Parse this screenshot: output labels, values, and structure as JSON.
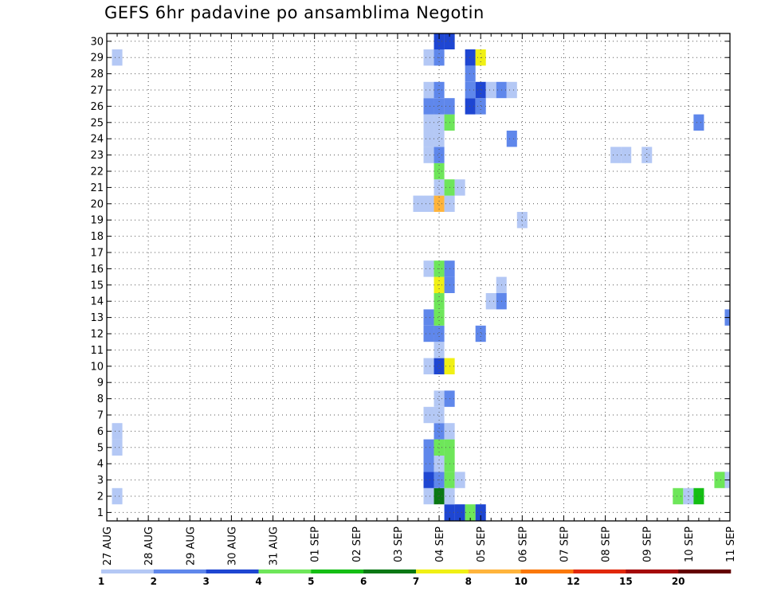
{
  "chart_data": {
    "type": "heatmap",
    "title": "GEFS 6hr padavine po ansamblima Negotin",
    "x_ticks": [
      "27 AUG",
      "28 AUG",
      "29 AUG",
      "30 AUG",
      "31 AUG",
      "01 SEP",
      "02 SEP",
      "03 SEP",
      "04 SEP",
      "05 SEP",
      "06 SEP",
      "07 SEP",
      "08 SEP",
      "09 SEP",
      "10 SEP",
      "11 SEP"
    ],
    "x_step_hours": 6,
    "x_ticks_per_day": 4,
    "y_ticks": [
      1,
      2,
      3,
      4,
      5,
      6,
      7,
      8,
      9,
      10,
      11,
      12,
      13,
      14,
      15,
      16,
      17,
      18,
      19,
      20,
      21,
      22,
      23,
      24,
      25,
      26,
      27,
      28,
      29,
      30
    ],
    "grid": true,
    "legend_position": "bottom",
    "legend_labels": [
      "1",
      "2",
      "3",
      "4",
      "5",
      "6",
      "7",
      "8",
      "10",
      "12",
      "15",
      "20"
    ],
    "legend_colors": [
      "#b4c8f5",
      "#5f87eb",
      "#1e46d2",
      "#6ee65a",
      "#14be14",
      "#0a7814",
      "#f0f014",
      "#ffb43c",
      "#fa780a",
      "#e1280a",
      "#a50a0a",
      "#640000"
    ],
    "series": [
      {
        "member": 1,
        "cells": [
          [
            8.25,
            3
          ],
          [
            8.5,
            3
          ],
          [
            8.75,
            4
          ],
          [
            9.0,
            3
          ],
          [
            20.25,
            3
          ],
          [
            20.5,
            3
          ],
          [
            20.75,
            2
          ]
        ]
      },
      {
        "member": 2,
        "cells": [
          [
            0.25,
            1
          ],
          [
            7.75,
            1
          ],
          [
            8.0,
            6
          ],
          [
            8.25,
            1
          ],
          [
            13.75,
            4
          ],
          [
            14.0,
            1
          ],
          [
            14.25,
            5
          ],
          [
            20.0,
            1
          ],
          [
            20.5,
            1
          ],
          [
            23.25,
            5
          ],
          [
            23.5,
            1
          ],
          [
            23.75,
            6
          ]
        ]
      },
      {
        "member": 3,
        "cells": [
          [
            7.75,
            3
          ],
          [
            8.0,
            2
          ],
          [
            8.25,
            4
          ],
          [
            8.5,
            1
          ],
          [
            14.75,
            4
          ],
          [
            15.0,
            1
          ],
          [
            18.75,
            2
          ],
          [
            20.75,
            1
          ]
        ]
      },
      {
        "member": 4,
        "cells": [
          [
            7.75,
            2
          ],
          [
            8.0,
            1
          ],
          [
            8.25,
            4
          ]
        ]
      },
      {
        "member": 5,
        "cells": [
          [
            0.25,
            1
          ],
          [
            7.75,
            2
          ],
          [
            8.0,
            4
          ],
          [
            8.25,
            4
          ]
        ]
      },
      {
        "member": 6,
        "cells": [
          [
            0.25,
            1
          ],
          [
            8.0,
            2
          ],
          [
            8.25,
            1
          ],
          [
            17.0,
            1
          ],
          [
            21.75,
            1
          ]
        ]
      },
      {
        "member": 7,
        "cells": [
          [
            7.75,
            1
          ],
          [
            8.0,
            1
          ],
          [
            15.25,
            2
          ],
          [
            19.75,
            1
          ],
          [
            21.0,
            3
          ]
        ]
      },
      {
        "member": 8,
        "cells": [
          [
            8.0,
            1
          ],
          [
            8.25,
            2
          ],
          [
            18.75,
            3
          ],
          [
            19.25,
            1
          ]
        ]
      },
      {
        "member": 9,
        "cells": [
          [
            20.75,
            3
          ]
        ]
      },
      {
        "member": 10,
        "cells": [
          [
            7.75,
            1
          ],
          [
            8.0,
            3
          ],
          [
            8.25,
            7
          ]
        ]
      },
      {
        "member": 11,
        "cells": [
          [
            8.0,
            1
          ]
        ]
      },
      {
        "member": 12,
        "cells": [
          [
            7.75,
            2
          ],
          [
            8.0,
            2
          ],
          [
            9.0,
            2
          ]
        ]
      },
      {
        "member": 13,
        "cells": [
          [
            7.75,
            2
          ],
          [
            8.0,
            4
          ],
          [
            15.0,
            2
          ],
          [
            20.0,
            3
          ],
          [
            20.25,
            3
          ],
          [
            22.75,
            1
          ]
        ]
      },
      {
        "member": 14,
        "cells": [
          [
            8.0,
            4
          ],
          [
            9.25,
            1
          ],
          [
            9.5,
            2
          ],
          [
            17.25,
            5
          ],
          [
            20.0,
            5
          ],
          [
            20.25,
            1
          ]
        ]
      },
      {
        "member": 15,
        "cells": [
          [
            8.0,
            7
          ],
          [
            8.25,
            2
          ],
          [
            9.5,
            1
          ],
          [
            16.25,
            1
          ]
        ]
      },
      {
        "member": 16,
        "cells": [
          [
            7.75,
            1
          ],
          [
            8.0,
            4
          ],
          [
            8.25,
            2
          ],
          [
            23.0,
            5
          ],
          [
            23.25,
            1
          ],
          [
            23.5,
            1
          ],
          [
            23.75,
            11
          ],
          [
            24.0,
            12
          ],
          [
            24.25,
            12
          ],
          [
            24.5,
            12
          ]
        ]
      },
      {
        "member": 17,
        "cells": []
      },
      {
        "member": 18,
        "cells": []
      },
      {
        "member": 19,
        "cells": [
          [
            10.0,
            1
          ]
        ]
      },
      {
        "member": 20,
        "cells": [
          [
            7.5,
            1
          ],
          [
            7.75,
            1
          ],
          [
            8.0,
            8
          ],
          [
            8.25,
            1
          ],
          [
            19.75,
            1
          ],
          [
            20.0,
            3
          ]
        ]
      },
      {
        "member": 21,
        "cells": [
          [
            8.0,
            1
          ],
          [
            8.25,
            4
          ],
          [
            8.5,
            1
          ]
        ]
      },
      {
        "member": 22,
        "cells": [
          [
            8.0,
            4
          ],
          [
            21.75,
            1
          ]
        ]
      },
      {
        "member": 23,
        "cells": [
          [
            7.75,
            1
          ],
          [
            8.0,
            2
          ],
          [
            12.25,
            1
          ],
          [
            12.5,
            1
          ],
          [
            13.0,
            1
          ],
          [
            22.25,
            1
          ],
          [
            22.5,
            10
          ],
          [
            22.75,
            9
          ],
          [
            23.0,
            6
          ],
          [
            23.25,
            3
          ]
        ]
      },
      {
        "member": 24,
        "cells": [
          [
            7.75,
            1
          ],
          [
            8.0,
            1
          ],
          [
            9.75,
            2
          ]
        ]
      },
      {
        "member": 25,
        "cells": [
          [
            7.75,
            1
          ],
          [
            8.0,
            1
          ],
          [
            8.25,
            4
          ],
          [
            14.25,
            2
          ],
          [
            16.75,
            2
          ],
          [
            20.5,
            9
          ],
          [
            20.75,
            2
          ],
          [
            21.0,
            2
          ],
          [
            21.25,
            3
          ],
          [
            21.5,
            1
          ],
          [
            21.75,
            1
          ],
          [
            22.0,
            1
          ],
          [
            22.5,
            2
          ],
          [
            22.75,
            9
          ],
          [
            23.0,
            9
          ],
          [
            23.25,
            2
          ]
        ]
      },
      {
        "member": 26,
        "cells": [
          [
            7.75,
            2
          ],
          [
            8.0,
            2
          ],
          [
            8.25,
            2
          ],
          [
            8.75,
            3
          ],
          [
            9.0,
            2
          ],
          [
            16.0,
            1
          ],
          [
            18.5,
            1
          ],
          [
            18.75,
            5
          ],
          [
            19.0,
            4
          ],
          [
            19.25,
            10
          ]
        ]
      },
      {
        "member": 27,
        "cells": [
          [
            7.75,
            1
          ],
          [
            8.0,
            2
          ],
          [
            8.75,
            2
          ],
          [
            9.0,
            3
          ],
          [
            9.25,
            1
          ],
          [
            9.5,
            2
          ],
          [
            9.75,
            1
          ],
          [
            17.5,
            10
          ],
          [
            17.75,
            11
          ],
          [
            18.0,
            2
          ],
          [
            18.25,
            1
          ]
        ]
      },
      {
        "member": 28,
        "cells": [
          [
            8.75,
            2
          ]
        ]
      },
      {
        "member": 29,
        "cells": [
          [
            0.25,
            1
          ],
          [
            7.75,
            1
          ],
          [
            8.0,
            2
          ],
          [
            8.75,
            3
          ],
          [
            9.0,
            7
          ]
        ]
      },
      {
        "member": 30,
        "cells": [
          [
            8.0,
            3
          ],
          [
            8.25,
            3
          ],
          [
            16.0,
            1
          ],
          [
            16.25,
            1
          ]
        ]
      }
    ]
  }
}
